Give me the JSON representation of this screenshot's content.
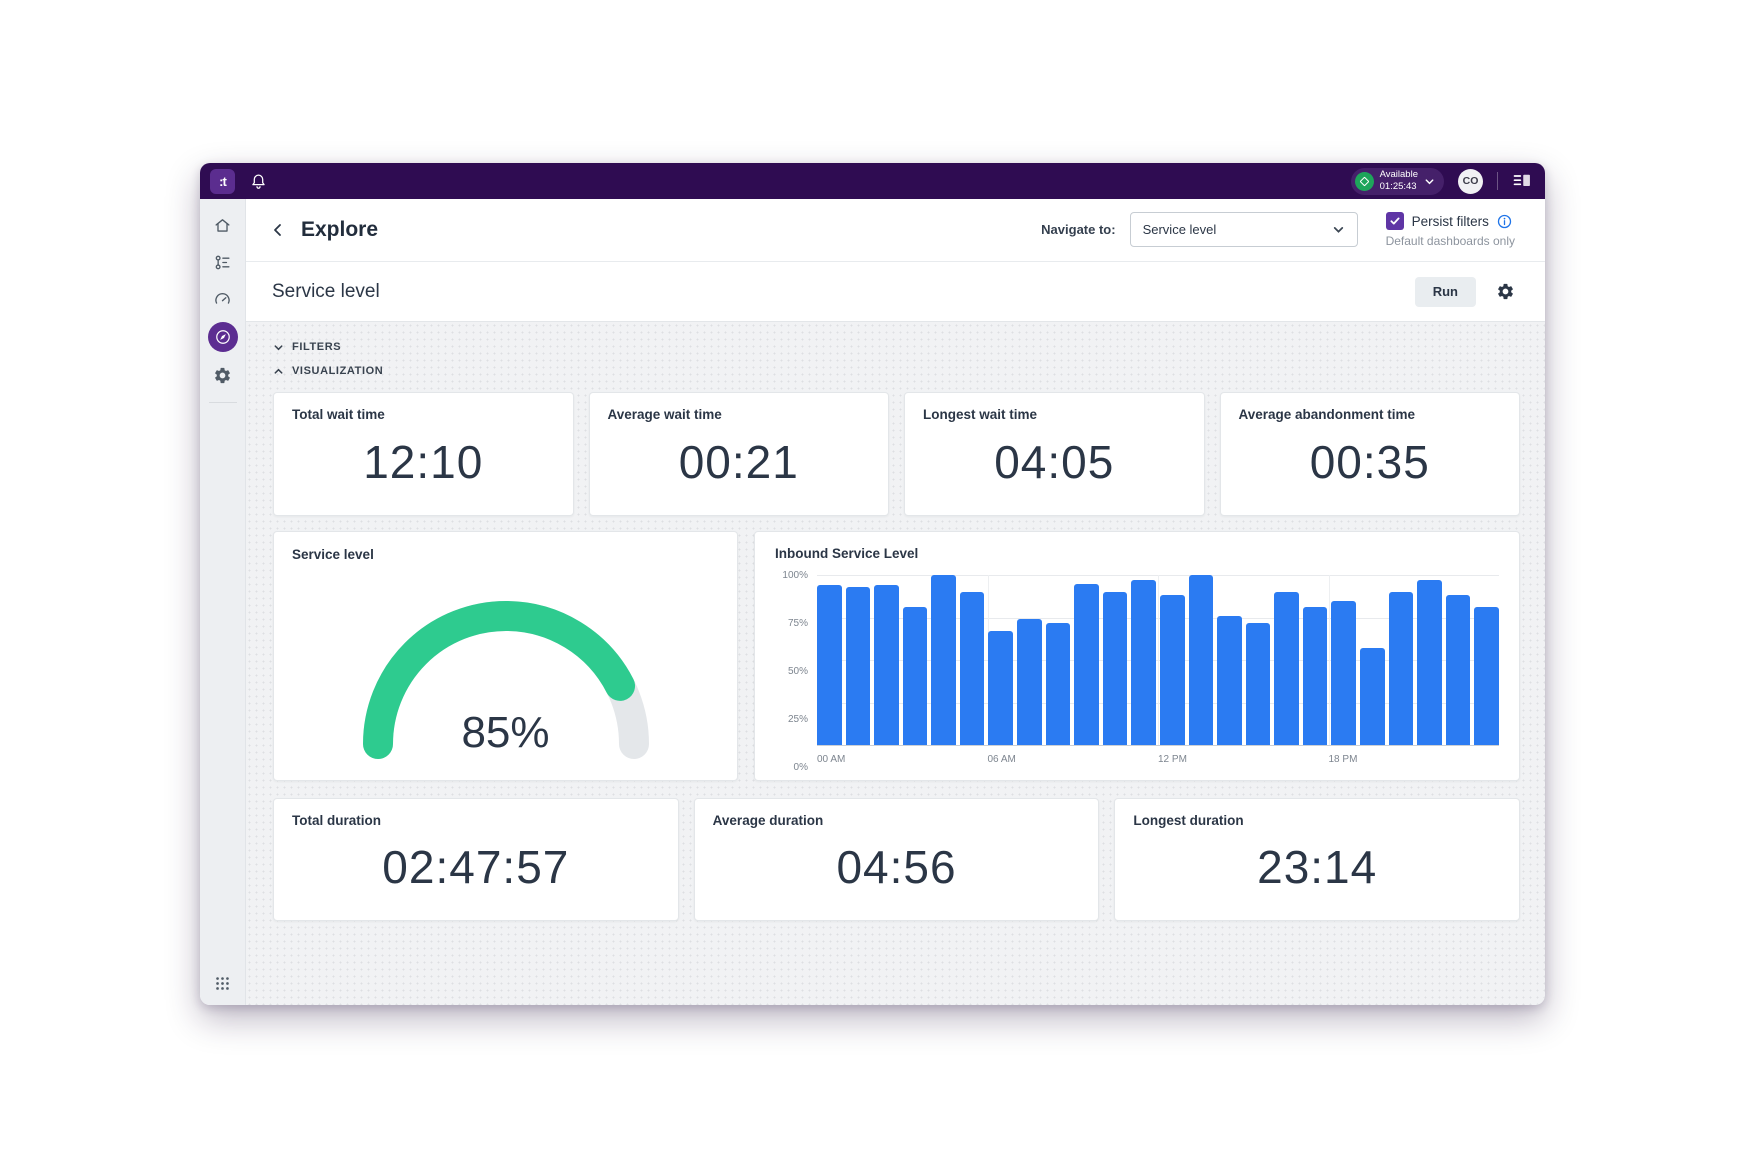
{
  "topbar": {
    "logo_text": ":t",
    "status": {
      "label": "Available",
      "timer": "01:25:43"
    },
    "avatar_initials": "CO",
    "icons": [
      "bell-icon",
      "chevron-down-icon",
      "conversations-panel-icon"
    ]
  },
  "sidebar": {
    "icons": [
      "home-icon",
      "routing-icon",
      "monitoring-icon",
      "explore-icon",
      "settings-icon",
      "apps-grid-icon"
    ],
    "active_item": "explore"
  },
  "header": {
    "back_icon": "chevron-left-icon",
    "title": "Explore",
    "navigate_label": "Navigate to:",
    "navigate_value": "Service level",
    "persist_label": "Persist filters",
    "persist_checked": true,
    "persist_note": "Default dashboards only",
    "info_icon": "info-icon"
  },
  "toolbar": {
    "title": "Service level",
    "run_label": "Run",
    "gear_icon": "gear-icon"
  },
  "sections": {
    "filters_label": "FILTERS",
    "visualization_label": "VISUALIZATION"
  },
  "kpis": [
    {
      "label": "Total wait time",
      "value": "12:10"
    },
    {
      "label": "Average wait time",
      "value": "00:21"
    },
    {
      "label": "Longest wait time",
      "value": "04:05"
    },
    {
      "label": "Average abandonment time",
      "value": "00:35"
    }
  ],
  "gauge": {
    "title": "Service level",
    "value": 85,
    "display": "85%",
    "color": "#2ecb8f",
    "track_color": "#e4e7ea"
  },
  "chart_data": {
    "type": "bar",
    "title": "Inbound Service Level",
    "categories": [
      "00",
      "01",
      "02",
      "03",
      "04",
      "05",
      "06",
      "07",
      "08",
      "09",
      "10",
      "11",
      "12",
      "13",
      "14",
      "15",
      "16",
      "17",
      "18",
      "19",
      "20",
      "21",
      "22",
      "23"
    ],
    "values": [
      94,
      93,
      94,
      81,
      100,
      90,
      67,
      74,
      72,
      95,
      90,
      97,
      88,
      100,
      76,
      72,
      90,
      81,
      85,
      57,
      90,
      97,
      88,
      81
    ],
    "x_ticks": [
      "00 AM",
      "06 AM",
      "12 PM",
      "18 PM"
    ],
    "x_tick_positions_pct": [
      0,
      25,
      50,
      75
    ],
    "y_ticks": [
      "100%",
      "75%",
      "50%",
      "25%",
      "0%"
    ],
    "ylim": [
      0,
      100
    ],
    "grid": true,
    "legend": false,
    "bar_color": "#2b7bf2"
  },
  "durations": [
    {
      "label": "Total duration",
      "value": "02:47:57"
    },
    {
      "label": "Average duration",
      "value": "04:56"
    },
    {
      "label": "Longest duration",
      "value": "23:14"
    }
  ],
  "colors": {
    "topbar_purple": "#2f0c52",
    "accent_purple": "#5c2d91",
    "status_green": "#1ea55b",
    "info_blue": "#1f74e8"
  }
}
